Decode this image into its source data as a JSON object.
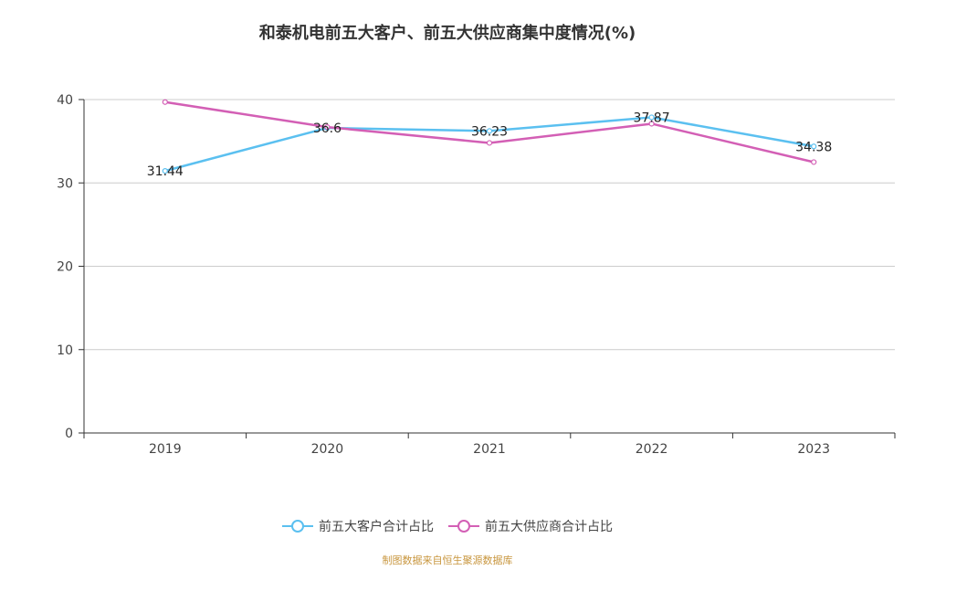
{
  "title": "和泰机电前五大客户、前五大供应商集中度情况(%)",
  "source_note": "制图数据来自恒生聚源数据库",
  "chart_data": {
    "type": "line",
    "categories": [
      "2019",
      "2020",
      "2021",
      "2022",
      "2023"
    ],
    "ylim": [
      0,
      40
    ],
    "yticks": [
      0,
      10,
      20,
      30,
      40
    ],
    "grid": true,
    "legend_position": "bottom",
    "series": [
      {
        "name": "前五大客户合计占比",
        "color": "#5bc0f0",
        "values": [
          31.44,
          36.6,
          36.23,
          37.87,
          34.38
        ],
        "labels": [
          "31.44",
          "36.6",
          "36.23",
          "37.87",
          "34.38"
        ]
      },
      {
        "name": "前五大供应商合计占比",
        "color": "#d35fb5",
        "values": [
          39.7,
          36.7,
          34.8,
          37.1,
          32.5
        ]
      }
    ]
  }
}
